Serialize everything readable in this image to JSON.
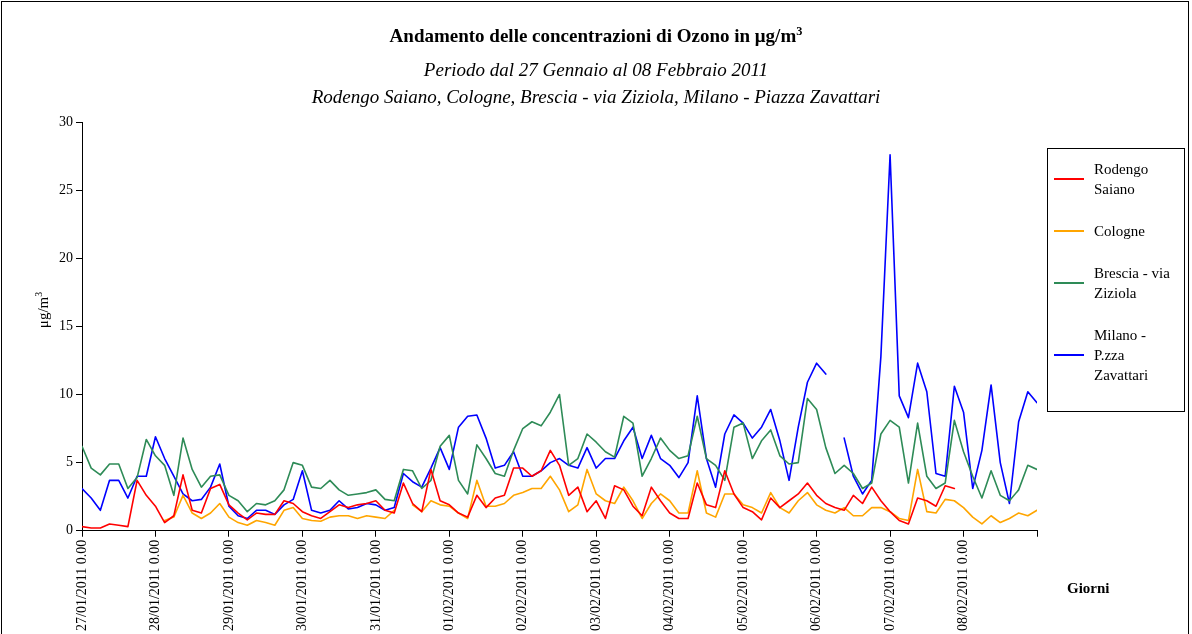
{
  "chart_data": {
    "type": "line",
    "title": "Andamento delle concentrazioni di Ozono in μg/m$^{3}$",
    "subtitle": "Periodo dal 27 Gennaio al 08 Febbraio 2011\nRodengo Saiano, Cologne, Brescia - via Ziziola, Milano - Piazza Zavattari",
    "xlabel": "Giorni",
    "ylabel": "μg/m$^{3}$",
    "x": [
      "2011-01-27T00:00",
      "2011-01-27T03:00",
      "2011-01-27T06:00",
      "2011-01-27T09:00",
      "2011-01-27T12:00",
      "2011-01-27T15:00",
      "2011-01-27T18:00",
      "2011-01-27T21:00",
      "2011-01-28T00:00",
      "2011-01-28T03:00",
      "2011-01-28T06:00",
      "2011-01-28T09:00",
      "2011-01-28T12:00",
      "2011-01-28T15:00",
      "2011-01-28T18:00",
      "2011-01-28T21:00",
      "2011-01-29T00:00",
      "2011-01-29T03:00",
      "2011-01-29T06:00",
      "2011-01-29T09:00",
      "2011-01-29T12:00",
      "2011-01-29T15:00",
      "2011-01-29T18:00",
      "2011-01-29T21:00",
      "2011-01-30T00:00",
      "2011-01-30T03:00",
      "2011-01-30T06:00",
      "2011-01-30T09:00",
      "2011-01-30T12:00",
      "2011-01-30T15:00",
      "2011-01-30T18:00",
      "2011-01-30T21:00",
      "2011-01-31T00:00",
      "2011-01-31T03:00",
      "2011-01-31T06:00",
      "2011-01-31T09:00",
      "2011-01-31T12:00",
      "2011-01-31T15:00",
      "2011-01-31T18:00",
      "2011-01-31T21:00",
      "2011-02-01T00:00",
      "2011-02-01T03:00",
      "2011-02-01T06:00",
      "2011-02-01T09:00",
      "2011-02-01T12:00",
      "2011-02-01T15:00",
      "2011-02-01T18:00",
      "2011-02-01T21:00",
      "2011-02-02T00:00",
      "2011-02-02T03:00",
      "2011-02-02T06:00",
      "2011-02-02T09:00",
      "2011-02-02T12:00",
      "2011-02-02T15:00",
      "2011-02-02T18:00",
      "2011-02-02T21:00",
      "2011-02-03T00:00",
      "2011-02-03T03:00",
      "2011-02-03T06:00",
      "2011-02-03T09:00",
      "2011-02-03T12:00",
      "2011-02-03T15:00",
      "2011-02-03T18:00",
      "2011-02-03T21:00",
      "2011-02-04T00:00",
      "2011-02-04T03:00",
      "2011-02-04T06:00",
      "2011-02-04T09:00",
      "2011-02-04T12:00",
      "2011-02-04T15:00",
      "2011-02-04T18:00",
      "2011-02-04T21:00",
      "2011-02-05T00:00",
      "2011-02-05T03:00",
      "2011-02-05T06:00",
      "2011-02-05T09:00",
      "2011-02-05T12:00",
      "2011-02-05T15:00",
      "2011-02-05T18:00",
      "2011-02-05T21:00",
      "2011-02-06T00:00",
      "2011-02-06T03:00",
      "2011-02-06T06:00",
      "2011-02-06T09:00",
      "2011-02-06T12:00",
      "2011-02-06T15:00",
      "2011-02-06T18:00",
      "2011-02-06T21:00",
      "2011-02-07T00:00",
      "2011-02-07T03:00",
      "2011-02-07T06:00",
      "2011-02-07T09:00",
      "2011-02-07T12:00",
      "2011-02-07T15:00",
      "2011-02-07T18:00",
      "2011-02-07T21:00",
      "2011-02-08T00:00",
      "2011-02-08T03:00",
      "2011-02-08T06:00",
      "2011-02-08T09:00",
      "2011-02-08T12:00",
      "2011-02-08T15:00",
      "2011-02-08T18:00",
      "2011-02-08T21:00",
      "2011-02-09T00:00"
    ],
    "series": [
      {
        "name": "Rodengo Saiano",
        "color": "#ff0000",
        "values": [
          0.3,
          0.2,
          0.2,
          0.5,
          0.4,
          0.3,
          3.7,
          2.6,
          1.8,
          0.6,
          1.1,
          4.1,
          1.5,
          1.3,
          3.1,
          3.4,
          1.9,
          1.3,
          0.8,
          1.3,
          1.2,
          1.2,
          2.2,
          2.0,
          1.4,
          1.1,
          0.9,
          1.4,
          1.9,
          1.7,
          1.9,
          2.0,
          2.2,
          1.5,
          1.3,
          3.5,
          2.0,
          1.4,
          4.5,
          2.2,
          1.9,
          1.3,
          1.0,
          2.6,
          1.7,
          2.4,
          2.6,
          4.6,
          4.6,
          4.0,
          4.4,
          5.9,
          4.8,
          2.6,
          3.2,
          1.4,
          2.2,
          0.9,
          3.3,
          3.0,
          1.8,
          1.1,
          3.2,
          2.2,
          1.3,
          0.9,
          0.9,
          3.5,
          1.9,
          1.7,
          4.4,
          2.7,
          1.7,
          1.4,
          0.8,
          2.4,
          1.7,
          2.2,
          2.7,
          3.5,
          2.6,
          2.0,
          1.7,
          1.5,
          2.6,
          2.0,
          3.2,
          2.2,
          1.4,
          0.75,
          0.5,
          2.4,
          2.2,
          1.8,
          3.3,
          3.1,
          null,
          null,
          null,
          null,
          null,
          null,
          null,
          null,
          null
        ]
      },
      {
        "name": "Cologne",
        "color": "#ffa500",
        "values": [
          null,
          null,
          null,
          null,
          null,
          null,
          null,
          null,
          null,
          0.75,
          1.0,
          2.6,
          1.3,
          0.9,
          1.3,
          2.0,
          1.0,
          0.6,
          0.4,
          0.75,
          0.6,
          0.4,
          1.5,
          1.7,
          0.9,
          0.75,
          0.7,
          1.0,
          1.1,
          1.1,
          0.9,
          1.1,
          1.0,
          0.9,
          1.5,
          null,
          1.9,
          1.4,
          2.2,
          1.9,
          1.8,
          1.3,
          0.9,
          3.7,
          1.8,
          1.8,
          2.0,
          2.6,
          2.8,
          3.1,
          3.1,
          4.0,
          3.0,
          1.4,
          1.9,
          4.5,
          2.7,
          2.2,
          2.0,
          3.2,
          2.2,
          0.9,
          2.0,
          2.7,
          2.2,
          1.3,
          1.3,
          4.4,
          1.3,
          1.0,
          2.7,
          2.7,
          1.9,
          1.7,
          1.3,
          2.8,
          1.7,
          1.3,
          2.2,
          2.8,
          1.9,
          1.5,
          1.3,
          1.7,
          1.1,
          1.1,
          1.7,
          1.7,
          1.4,
          0.9,
          0.75,
          4.5,
          1.4,
          1.3,
          2.3,
          2.2,
          1.7,
          1.0,
          0.5,
          1.1,
          0.6,
          0.9,
          1.3,
          1.1,
          1.5
        ]
      },
      {
        "name": "Brescia - via Ziziola",
        "color": "#2e8b57",
        "values": [
          6.2,
          4.6,
          4.1,
          4.9,
          4.9,
          3.1,
          3.9,
          6.7,
          5.5,
          4.8,
          2.6,
          6.8,
          4.5,
          3.2,
          4.0,
          4.1,
          2.6,
          2.2,
          1.4,
          2.0,
          1.9,
          2.2,
          3.0,
          5.0,
          4.8,
          3.2,
          3.1,
          3.7,
          3.0,
          2.6,
          2.7,
          2.8,
          3.0,
          2.3,
          2.2,
          4.5,
          4.4,
          3.1,
          3.7,
          6.2,
          7.0,
          3.7,
          2.7,
          6.3,
          5.3,
          4.2,
          4.0,
          5.9,
          7.5,
          8.0,
          7.7,
          8.7,
          10.0,
          4.8,
          5.3,
          7.1,
          6.5,
          5.8,
          5.4,
          8.4,
          7.9,
          4.0,
          5.3,
          6.8,
          5.9,
          5.3,
          5.5,
          8.4,
          5.3,
          4.8,
          3.7,
          7.6,
          7.9,
          5.3,
          6.6,
          7.4,
          5.5,
          4.9,
          5.0,
          9.7,
          8.9,
          6.1,
          4.2,
          4.8,
          4.2,
          3.1,
          3.5,
          7.1,
          8.1,
          7.6,
          3.5,
          7.9,
          4.0,
          3.1,
          3.5,
          8.1,
          5.8,
          4.0,
          2.4,
          4.4,
          2.6,
          2.2,
          3.0,
          4.8,
          4.5
        ]
      },
      {
        "name": "Milano - P.zza Zavattari",
        "color": "#0000ff",
        "values": [
          3.1,
          2.4,
          1.5,
          3.7,
          3.7,
          2.4,
          4.0,
          4.0,
          6.9,
          5.3,
          4.0,
          2.7,
          2.2,
          2.3,
          3.2,
          4.9,
          1.8,
          1.1,
          0.9,
          1.5,
          1.5,
          1.2,
          1.9,
          2.3,
          4.4,
          1.5,
          1.3,
          1.5,
          2.2,
          1.6,
          1.7,
          2.0,
          1.9,
          1.5,
          1.7,
          4.2,
          3.6,
          3.2,
          4.6,
          6.1,
          4.5,
          7.6,
          8.4,
          8.5,
          6.8,
          4.6,
          4.8,
          5.8,
          4.0,
          4.0,
          4.4,
          5.0,
          5.3,
          4.8,
          4.6,
          6.1,
          4.6,
          5.3,
          5.3,
          6.6,
          7.6,
          5.3,
          7.0,
          5.3,
          4.8,
          3.9,
          5.0,
          9.9,
          5.3,
          3.2,
          7.1,
          8.5,
          7.9,
          6.8,
          7.6,
          8.9,
          6.6,
          3.7,
          7.6,
          10.9,
          12.3,
          11.5,
          null,
          6.8,
          4.0,
          2.7,
          3.7,
          12.8,
          27.6,
          9.9,
          8.3,
          12.3,
          10.2,
          4.2,
          4.0,
          10.6,
          8.7,
          3.1,
          5.9,
          10.7,
          5.0,
          2.0,
          8.0,
          10.2,
          9.4
        ]
      }
    ],
    "xlim": [
      "2011-01-27T00:00",
      "2011-02-09T00:00"
    ],
    "xticks": [
      {
        "value": "2011-01-27T00:00",
        "label": "27/01/2011 0.00"
      },
      {
        "value": "2011-01-28T00:00",
        "label": "28/01/2011 0.00"
      },
      {
        "value": "2011-01-29T00:00",
        "label": "29/01/2011 0.00"
      },
      {
        "value": "2011-01-30T00:00",
        "label": "30/01/2011 0.00"
      },
      {
        "value": "2011-01-31T00:00",
        "label": "31/01/2011 0.00"
      },
      {
        "value": "2011-02-01T00:00",
        "label": "01/02/2011 0.00"
      },
      {
        "value": "2011-02-02T00:00",
        "label": "02/02/2011 0.00"
      },
      {
        "value": "2011-02-03T00:00",
        "label": "03/02/2011 0.00"
      },
      {
        "value": "2011-02-04T00:00",
        "label": "04/02/2011 0.00"
      },
      {
        "value": "2011-02-05T00:00",
        "label": "05/02/2011 0.00"
      },
      {
        "value": "2011-02-06T00:00",
        "label": "06/02/2011 0.00"
      },
      {
        "value": "2011-02-07T00:00",
        "label": "07/02/2011 0.00"
      },
      {
        "value": "2011-02-08T00:00",
        "label": "08/02/2011 0.00"
      },
      {
        "value": "2011-02-09T00:00",
        "label": null
      }
    ],
    "ylim": [
      0,
      30
    ],
    "yticks": [
      0,
      5,
      10,
      15,
      20,
      25,
      30
    ],
    "legend": "right",
    "marker": "none",
    "line_style": "solid"
  }
}
